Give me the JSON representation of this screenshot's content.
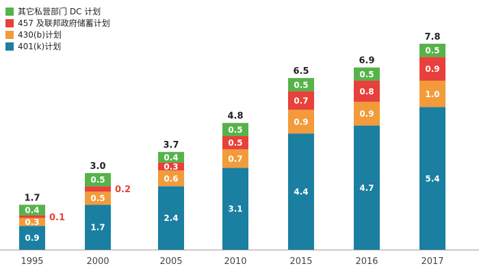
{
  "chart_data": {
    "type": "bar",
    "stacked": true,
    "categories": [
      "1995",
      "2000",
      "2005",
      "2010",
      "2015",
      "2016",
      "2017"
    ],
    "series": [
      {
        "name": "401(k)计划",
        "color": "#1a7fa1",
        "values": [
          0.9,
          1.7,
          2.4,
          3.1,
          4.4,
          4.7,
          5.4
        ]
      },
      {
        "name": "430(b)计划",
        "color": "#f39b3a",
        "values": [
          0.3,
          0.5,
          0.6,
          0.7,
          0.9,
          0.9,
          1.0
        ]
      },
      {
        "name": "457 及联邦政府储蓄计划",
        "color": "#e8403a",
        "values": [
          0.1,
          0.2,
          0.3,
          0.5,
          0.7,
          0.8,
          0.9
        ]
      },
      {
        "name": "其它私营部门 DC 计划",
        "color": "#56b34a",
        "values": [
          0.4,
          0.5,
          0.4,
          0.5,
          0.5,
          0.5,
          0.5
        ]
      }
    ],
    "totals": [
      1.7,
      3.0,
      3.7,
      4.8,
      6.5,
      6.9,
      7.8
    ],
    "labels": {
      "series0": [
        "0.9",
        "1.7",
        "2.4",
        "3.1",
        "4.4",
        "4.7",
        "5.4"
      ],
      "series1": [
        "0.3",
        "0.5",
        "0.6",
        "0.7",
        "0.9",
        "0.9",
        "1.0"
      ],
      "series2": [
        "0.1",
        "0.2",
        "0.3",
        "0.5",
        "0.7",
        "0.8",
        "0.9"
      ],
      "series3": [
        "0.4",
        "0.5",
        "0.4",
        "0.5",
        "0.5",
        "0.5",
        "0.5"
      ],
      "totals": [
        "1.7",
        "3.0",
        "3.7",
        "4.8",
        "6.5",
        "6.9",
        "7.8"
      ]
    },
    "outside_label_categories": [
      "1995",
      "2000"
    ],
    "ylim": [
      0,
      8.2
    ],
    "title": "",
    "xlabel": "",
    "ylabel": "",
    "grid": false,
    "legend_position": "top-left",
    "legend_order": [
      3,
      2,
      1,
      0
    ]
  }
}
